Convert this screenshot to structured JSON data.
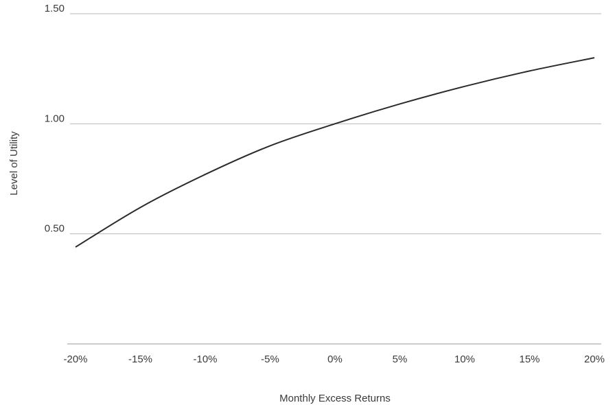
{
  "chart_data": {
    "type": "line",
    "xlabel": "Monthly Excess Returns",
    "ylabel": "Level of Utility",
    "x_ticks": [
      -20,
      -15,
      -10,
      -5,
      0,
      5,
      10,
      15,
      20
    ],
    "x_tick_labels": [
      "-20%",
      "-15%",
      "-10%",
      "-5%",
      "0%",
      "5%",
      "10%",
      "15%",
      "20%"
    ],
    "y_ticks": [
      0.5,
      1.0,
      1.5
    ],
    "y_tick_labels": [
      "0.50",
      "1.00",
      "1.50"
    ],
    "xlim": [
      -20,
      20
    ],
    "ylim": [
      0,
      1.5
    ],
    "grid": "horizontal",
    "legend": "none",
    "line_color": "#2b2b2b",
    "grid_color": "#b9b9b9",
    "series": [
      {
        "x": [
          -20,
          -15,
          -10,
          -5,
          0,
          5,
          10,
          15,
          20
        ],
        "values": [
          0.44,
          0.62,
          0.77,
          0.9,
          1.0,
          1.09,
          1.17,
          1.24,
          1.3
        ]
      }
    ]
  }
}
